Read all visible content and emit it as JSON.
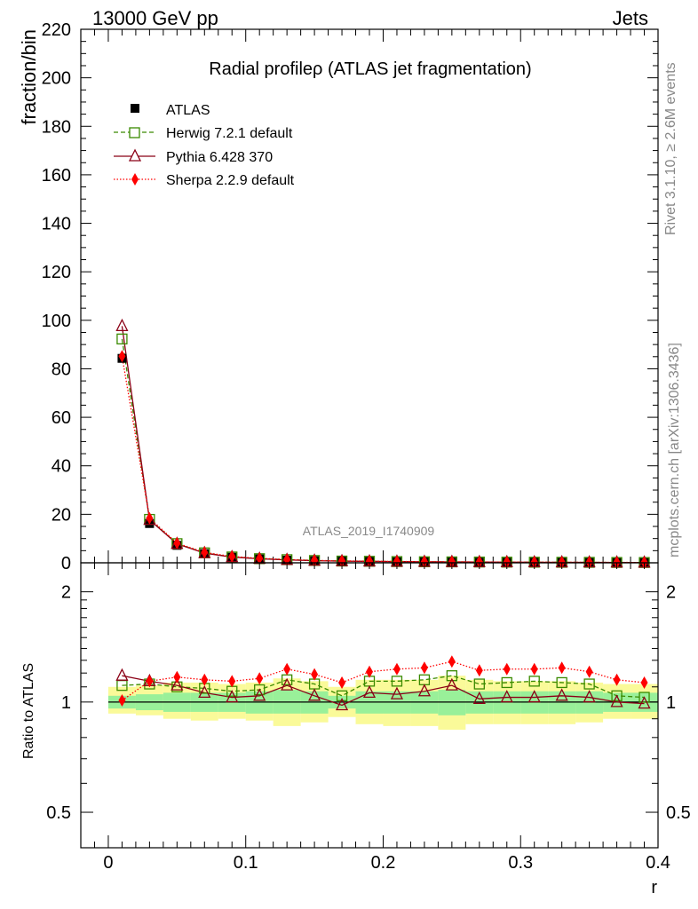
{
  "header": {
    "left": "13000 GeV pp",
    "right": "Jets"
  },
  "side_text": {
    "rivet": "Rivet 3.1.10, ≥ 2.6M events",
    "mcplots": "mcplots.cern.ch [arXiv:1306.3436]"
  },
  "colors": {
    "atlas": "#000000",
    "herwig": "#3a8a00",
    "pythia": "#8b0016",
    "sherpa": "#ff0000",
    "band_inner": "#99f099",
    "band_outer": "#fafa99"
  },
  "chart_data": [
    {
      "type": "scatter",
      "title": "Radial profileρ (ATLAS jet fragmentation)",
      "xlabel": "r",
      "ylabel": "fraction/bin",
      "watermark": "ATLAS_2019_I1740909",
      "xlim": [
        -0.02,
        0.4
      ],
      "ylim": [
        0,
        220
      ],
      "yticks": [
        0,
        20,
        40,
        60,
        80,
        100,
        120,
        140,
        160,
        180,
        200,
        220
      ],
      "x": [
        0.01,
        0.03,
        0.05,
        0.07,
        0.09,
        0.11,
        0.13,
        0.15,
        0.17,
        0.19,
        0.21,
        0.23,
        0.25,
        0.27,
        0.29,
        0.31,
        0.33,
        0.35,
        0.37,
        0.39
      ],
      "series": [
        {
          "name": "ATLAS",
          "marker": "square-filled",
          "values": [
            84.3,
            16.2,
            7.2,
            3.8,
            2.3,
            1.6,
            1.1,
            0.85,
            0.7,
            0.55,
            0.45,
            0.38,
            0.32,
            0.28,
            0.24,
            0.21,
            0.18,
            0.16,
            0.14,
            0.12
          ]
        },
        {
          "name": "Herwig 7.2.1 default",
          "marker": "square-open",
          "values": [
            92.3,
            17.9,
            7.9,
            4.1,
            2.4,
            1.7,
            1.3,
            0.95,
            0.72,
            0.62,
            0.51,
            0.43,
            0.37,
            0.31,
            0.27,
            0.24,
            0.2,
            0.18,
            0.14,
            0.12
          ]
        },
        {
          "name": "Pythia 6.428 370",
          "marker": "triangle-open",
          "values": [
            97.6,
            17.7,
            7.8,
            4.0,
            2.35,
            1.65,
            1.2,
            0.88,
            0.68,
            0.58,
            0.48,
            0.4,
            0.35,
            0.29,
            0.25,
            0.22,
            0.19,
            0.17,
            0.14,
            0.12
          ]
        },
        {
          "name": "Sherpa 2.2.9 default",
          "marker": "diamond-filled",
          "values": [
            85.2,
            18.4,
            8.1,
            4.3,
            2.6,
            1.85,
            1.35,
            1.0,
            0.78,
            0.68,
            0.56,
            0.48,
            0.42,
            0.35,
            0.3,
            0.26,
            0.23,
            0.2,
            0.16,
            0.14
          ]
        }
      ]
    },
    {
      "type": "line",
      "title": "",
      "xlabel": "r",
      "ylabel": "Ratio to ATLAS",
      "xlim": [
        -0.02,
        0.4
      ],
      "ylim": [
        0.4,
        2.4
      ],
      "scale": "log",
      "yticks": [
        0.5,
        1,
        2
      ],
      "ytick_labels": [
        "0.5",
        "1",
        "2"
      ],
      "xticks": [
        0,
        0.1,
        0.2,
        0.3,
        0.4
      ],
      "xtick_labels": [
        "0",
        "0.1",
        "0.2",
        "0.3",
        "0.4"
      ],
      "x": [
        0.01,
        0.03,
        0.05,
        0.07,
        0.09,
        0.11,
        0.13,
        0.15,
        0.17,
        0.19,
        0.21,
        0.23,
        0.25,
        0.27,
        0.29,
        0.31,
        0.33,
        0.35,
        0.37,
        0.39
      ],
      "band_inner_lo": [
        0.96,
        0.95,
        0.94,
        0.94,
        0.94,
        0.93,
        0.93,
        0.93,
        0.96,
        0.93,
        0.93,
        0.93,
        0.92,
        0.93,
        0.93,
        0.93,
        0.93,
        0.93,
        0.94,
        0.94
      ],
      "band_inner_hi": [
        1.04,
        1.05,
        1.06,
        1.06,
        1.06,
        1.07,
        1.08,
        1.07,
        1.04,
        1.07,
        1.07,
        1.07,
        1.08,
        1.07,
        1.07,
        1.07,
        1.07,
        1.07,
        1.06,
        1.06
      ],
      "band_outer_lo": [
        0.93,
        0.92,
        0.9,
        0.89,
        0.9,
        0.89,
        0.86,
        0.88,
        0.91,
        0.87,
        0.86,
        0.86,
        0.84,
        0.87,
        0.87,
        0.87,
        0.87,
        0.88,
        0.9,
        0.9
      ],
      "band_outer_hi": [
        1.1,
        1.11,
        1.13,
        1.13,
        1.12,
        1.13,
        1.16,
        1.14,
        1.1,
        1.15,
        1.15,
        1.15,
        1.18,
        1.15,
        1.14,
        1.14,
        1.14,
        1.13,
        1.12,
        1.12
      ],
      "series": [
        {
          "name": "Herwig 7.2.1 default",
          "values": [
            1.11,
            1.12,
            1.1,
            1.09,
            1.07,
            1.08,
            1.15,
            1.12,
            1.04,
            1.14,
            1.14,
            1.15,
            1.18,
            1.12,
            1.13,
            1.14,
            1.13,
            1.12,
            1.04,
            1.03
          ]
        },
        {
          "name": "Pythia 6.428 370",
          "values": [
            1.18,
            1.14,
            1.11,
            1.06,
            1.03,
            1.04,
            1.11,
            1.04,
            0.98,
            1.06,
            1.05,
            1.07,
            1.11,
            1.02,
            1.03,
            1.03,
            1.04,
            1.03,
            1.0,
            0.99
          ]
        },
        {
          "name": "Sherpa 2.2.9 default",
          "values": [
            1.01,
            1.14,
            1.17,
            1.15,
            1.14,
            1.16,
            1.23,
            1.19,
            1.13,
            1.21,
            1.23,
            1.24,
            1.29,
            1.22,
            1.23,
            1.23,
            1.24,
            1.21,
            1.15,
            1.13
          ]
        }
      ]
    }
  ]
}
